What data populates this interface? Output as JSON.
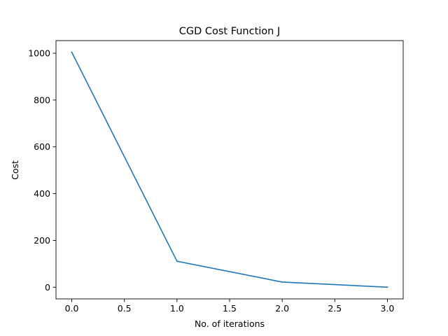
{
  "chart_data": {
    "type": "line",
    "title": "CGD Cost Function J",
    "xlabel": "No. of iterations",
    "ylabel": "Cost",
    "x": [
      0,
      1,
      2,
      3
    ],
    "series": [
      {
        "values": [
          1004,
          111,
          22,
          0
        ],
        "color": "#1f77b4"
      }
    ],
    "xlim": [
      -0.15,
      3.15
    ],
    "ylim": [
      -50,
      1054
    ],
    "xticks": [
      0.0,
      0.5,
      1.0,
      1.5,
      2.0,
      2.5,
      3.0
    ],
    "xtick_labels": [
      "0.0",
      "0.5",
      "1.0",
      "1.5",
      "2.0",
      "2.5",
      "3.0"
    ],
    "yticks": [
      0,
      200,
      400,
      600,
      800,
      1000
    ],
    "ytick_labels": [
      "0",
      "200",
      "400",
      "600",
      "800",
      "1000"
    ],
    "grid": false,
    "legend": false
  }
}
